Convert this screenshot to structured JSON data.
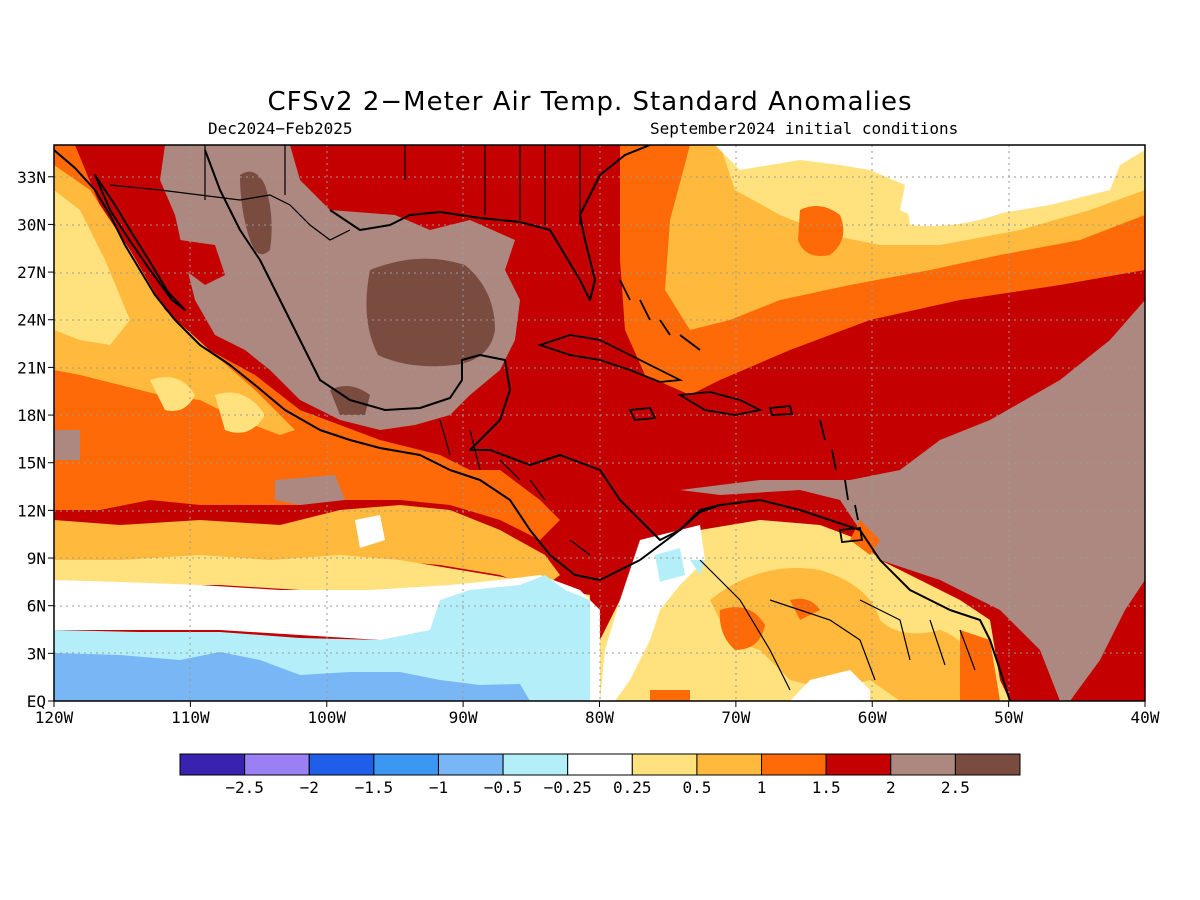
{
  "title": "CFSv2 2−Meter Air Temp. Standard Anomalies",
  "subtitle_left": "Dec2024−Feb2025",
  "subtitle_right": "September2024 initial conditions",
  "map": {
    "lon_range": [
      -120,
      -40
    ],
    "lat_range": [
      0,
      35
    ],
    "lon_ticks": [
      "120W",
      "110W",
      "100W",
      "90W",
      "80W",
      "70W",
      "60W",
      "50W",
      "40W"
    ],
    "lat_ticks": [
      "EQ",
      "3N",
      "6N",
      "9N",
      "12N",
      "15N",
      "18N",
      "21N",
      "24N",
      "27N",
      "30N",
      "33N"
    ],
    "grid": "dotted"
  },
  "colorbar": {
    "colors": [
      "#3a22b0",
      "#9b7ff5",
      "#1f5ee8",
      "#3c97f2",
      "#78b6f5",
      "#b4eef8",
      "#ffffff",
      "#ffe27e",
      "#ffb93c",
      "#ff6a08",
      "#c40000",
      "#ac8880",
      "#7a4c40"
    ],
    "labels": [
      "−2.5",
      "−2",
      "−1.5",
      "−1",
      "−0.5",
      "−0.25",
      "0.25",
      "0.5",
      "1",
      "1.5",
      "2",
      "2.5"
    ]
  }
}
